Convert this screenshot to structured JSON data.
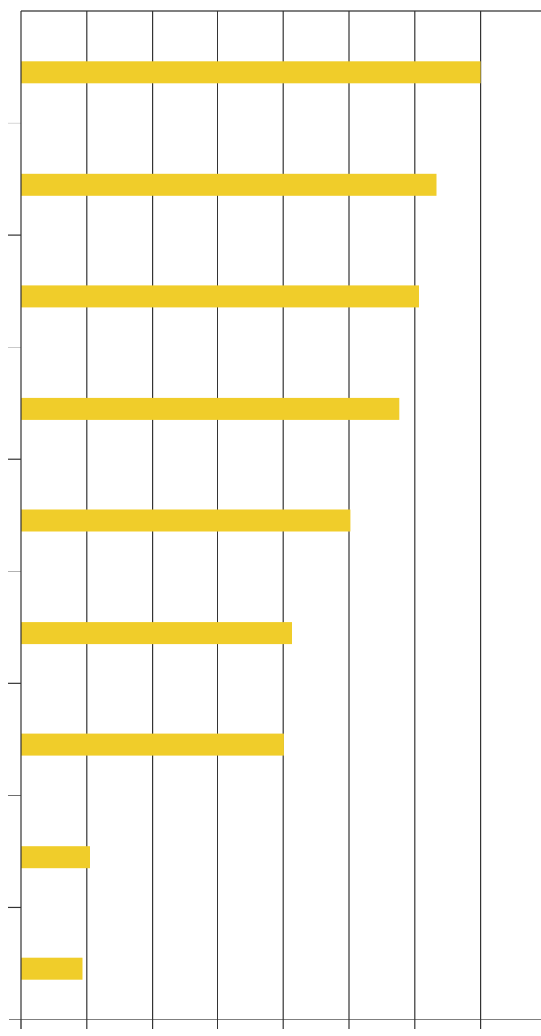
{
  "chart_data": {
    "type": "bar",
    "orientation": "horizontal",
    "title": "",
    "xlabel": "",
    "ylabel": "",
    "categories": [
      "",
      "",
      "",
      "",
      "",
      "",
      "",
      "",
      ""
    ],
    "values": [
      7.0,
      6.33,
      6.06,
      5.77,
      5.02,
      4.13,
      4.01,
      1.05,
      0.94
    ],
    "xlim": [
      0,
      7.9
    ],
    "x_gridline_step": 1,
    "grid": true,
    "legend": "none",
    "bar_color": "#F0CD2A",
    "axis_color": "#333333"
  }
}
